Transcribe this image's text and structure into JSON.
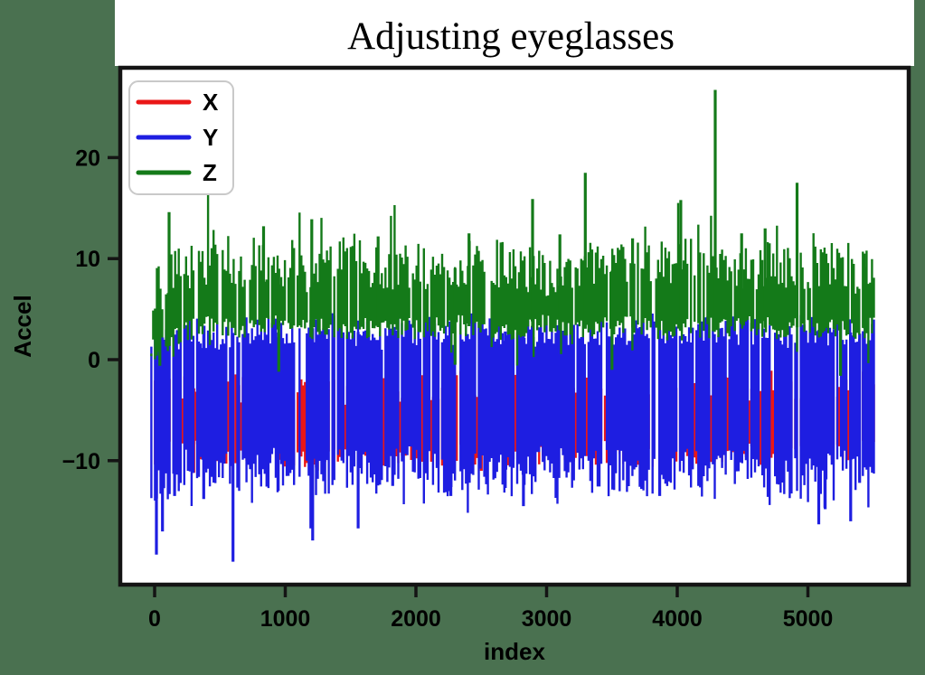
{
  "page": {
    "background_color": "#4a7150",
    "panel_color": "#ffffff",
    "spine_color": "#141414",
    "text_color": "#000000",
    "legend_border_color": "#c9c9c9"
  },
  "chart_data": {
    "type": "line",
    "title": "Adjusting eyeglasses",
    "xlabel": "index",
    "ylabel": "Accel",
    "xlim": [
      -290,
      5780
    ],
    "ylim": [
      -22.3,
      29.0
    ],
    "xticks": [
      0,
      1000,
      2000,
      3000,
      4000,
      5000
    ],
    "yticks": [
      20,
      10,
      0,
      -10
    ],
    "grid": false,
    "legend_position": "upper left",
    "index_range": [
      0,
      5515
    ],
    "series": [
      {
        "name": "X",
        "color": "#ea1717",
        "band_x": [
          -25,
          0,
          250,
          500,
          750,
          1000,
          1250,
          1500,
          1750,
          2000,
          2250,
          2500,
          2750,
          3000,
          3250,
          3500,
          3750,
          4000,
          4250,
          4500,
          4750,
          5000,
          5250,
          5515
        ],
        "band_lo": [
          -9.0,
          -9.5,
          -9.0,
          -9.6,
          -8.8,
          -9.4,
          -9.8,
          -9.0,
          -9.5,
          -8.9,
          -9.6,
          -9.2,
          -9.8,
          -9.0,
          -9.4,
          -9.1,
          -9.7,
          -9.0,
          -9.5,
          -9.2,
          -9.8,
          -9.4,
          -9.0,
          -9.3
        ],
        "band_hi": [
          -2.0,
          -2.2,
          -3.0,
          -2.2,
          -3.4,
          -2.6,
          -2.0,
          -3.2,
          -2.4,
          -2.8,
          -2.1,
          -3.0,
          -2.5,
          -2.2,
          -3.1,
          -2.6,
          -2.3,
          -3.0,
          -2.2,
          -2.7,
          -2.4,
          -3.1,
          -2.5,
          -2.8
        ],
        "spikes": [
          [
            300,
            -11.2
          ],
          [
            2500,
            -11.0
          ],
          [
            4700,
            -11.5
          ]
        ]
      },
      {
        "name": "Y",
        "color": "#1e1ee1",
        "band_x": [
          -25,
          0,
          250,
          500,
          750,
          1000,
          1250,
          1500,
          1750,
          2000,
          2250,
          2500,
          2750,
          3000,
          3250,
          3500,
          3750,
          4000,
          4250,
          4500,
          4750,
          5000,
          5250,
          5515
        ],
        "band_lo": [
          -12.0,
          -13.0,
          -10.8,
          -11.5,
          -10.4,
          -11.2,
          -11.8,
          -10.6,
          -11.4,
          -10.3,
          -11.6,
          -10.9,
          -11.9,
          -10.5,
          -11.2,
          -10.8,
          -11.5,
          -10.4,
          -11.3,
          -10.7,
          -11.7,
          -12.0,
          -10.6,
          -11.2
        ],
        "band_hi": [
          1.5,
          2.0,
          2.8,
          2.4,
          3.0,
          2.6,
          3.2,
          2.8,
          2.5,
          3.0,
          2.7,
          3.3,
          2.6,
          3.0,
          2.8,
          2.5,
          3.1,
          2.7,
          3.4,
          2.9,
          2.6,
          3.0,
          2.8,
          2.4
        ],
        "spikes": [
          [
            14,
            -19.3
          ],
          [
            60,
            -17.0
          ],
          [
            153,
            -13.5
          ],
          [
            376,
            -13.8
          ],
          [
            600,
            -20.0
          ],
          [
            946,
            -13.0
          ],
          [
            1210,
            -17.9
          ],
          [
            1558,
            -16.7
          ],
          [
            1822,
            -12.5
          ],
          [
            2267,
            -13.5
          ],
          [
            2684,
            -12.7
          ],
          [
            2823,
            -14.5
          ],
          [
            3727,
            -12.8
          ],
          [
            3866,
            -13.5
          ],
          [
            5083,
            -16.3
          ],
          [
            5132,
            -14.8
          ],
          [
            5327,
            -16.0
          ],
          [
            5396,
            -12.2
          ]
        ]
      },
      {
        "name": "Z",
        "color": "#147a19",
        "band_x": [
          -25,
          0,
          250,
          500,
          750,
          1000,
          1250,
          1500,
          1750,
          2000,
          2250,
          2500,
          2750,
          3000,
          3250,
          3500,
          3750,
          4000,
          4250,
          4500,
          4750,
          5000,
          5250,
          5515
        ],
        "band_lo": [
          0.8,
          1.0,
          3.0,
          3.3,
          2.9,
          3.4,
          3.1,
          2.8,
          3.3,
          3.0,
          3.5,
          3.2,
          2.9,
          3.4,
          3.0,
          3.3,
          3.1,
          2.8,
          3.2,
          3.5,
          3.0,
          3.3,
          2.9,
          3.2
        ],
        "band_hi": [
          1.4,
          6.5,
          9.5,
          8.5,
          9.8,
          8.8,
          9.2,
          10.3,
          8.6,
          9.4,
          8.8,
          10.1,
          9.0,
          8.5,
          9.6,
          8.8,
          9.3,
          10.0,
          9.1,
          8.7,
          9.5,
          8.9,
          9.4,
          8.3
        ],
        "spikes": [
          [
            111,
            14.6
          ],
          [
            834,
            13.2
          ],
          [
            1203,
            13.9
          ],
          [
            1711,
            12.2
          ],
          [
            2406,
            12.5
          ],
          [
            2893,
            15.9
          ],
          [
            3102,
            12.4
          ],
          [
            3296,
            18.5
          ],
          [
            3658,
            12.0
          ],
          [
            4027,
            15.8
          ],
          [
            4291,
            26.7
          ],
          [
            4493,
            12.5
          ],
          [
            4673,
            13.0
          ],
          [
            4917,
            17.5
          ],
          [
            5431,
            10.5
          ],
          [
            40,
            -0.6
          ],
          [
            950,
            -1.2
          ],
          [
            2300,
            -0.5
          ],
          [
            3500,
            -1.0
          ],
          [
            5250,
            -1.6
          ]
        ]
      }
    ]
  }
}
